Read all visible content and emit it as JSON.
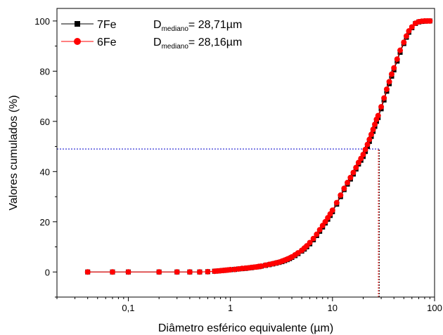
{
  "chart_data": {
    "type": "scatter",
    "xscale": "log",
    "xlim": [
      0.02,
      100
    ],
    "ylim": [
      -10,
      105
    ],
    "xlabel": "Diâmetro esférico equivalente (µm)",
    "ylabel": "Valores cumulados (%)",
    "x_ticks": [
      0.1,
      1,
      10,
      100
    ],
    "x_tick_labels": [
      "0,1",
      "1",
      "10",
      "100"
    ],
    "y_ticks": [
      0,
      20,
      40,
      60,
      80,
      100
    ],
    "y_tick_labels": [
      "0",
      "20",
      "40",
      "60",
      "80",
      "100"
    ],
    "grid": false,
    "legend": {
      "position": "top-left",
      "entries": [
        {
          "name": "7Fe",
          "marker": "square",
          "color": "#000000",
          "annotation_main": "D",
          "annotation_sub": "mediano",
          "annotation_value": "= 28,71µm"
        },
        {
          "name": "6Fe",
          "marker": "circle",
          "color": "#ff0000",
          "annotation_main": "D",
          "annotation_sub": "mediano",
          "annotation_value": "= 28,16µm"
        }
      ]
    },
    "reference_lines": [
      {
        "type": "horizontal",
        "y": 49,
        "x_end": 28.71,
        "color": "#0000cc"
      },
      {
        "type": "vertical",
        "x": 28.71,
        "y_end": 49,
        "color": "#000000"
      },
      {
        "type": "vertical",
        "x": 28.16,
        "y_end": 49,
        "color": "#ff0000"
      }
    ],
    "series": [
      {
        "name": "7Fe",
        "color": "#000000",
        "marker": "square",
        "x": [
          0.04,
          0.07,
          0.1,
          0.2,
          0.3,
          0.4,
          0.5,
          0.6,
          0.7,
          0.75,
          0.8,
          0.85,
          0.9,
          0.95,
          1,
          1.1,
          1.2,
          1.3,
          1.4,
          1.5,
          1.6,
          1.7,
          1.8,
          1.9,
          2,
          2.2,
          2.4,
          2.6,
          2.8,
          3,
          3.2,
          3.4,
          3.6,
          3.8,
          4,
          4.3,
          4.6,
          5,
          5.3,
          5.6,
          6,
          6.5,
          7,
          7.5,
          8,
          8.5,
          9,
          9.5,
          10,
          11,
          12,
          13,
          14,
          15,
          16,
          17,
          18,
          19,
          20,
          21,
          22,
          23,
          24,
          25,
          26,
          27,
          28,
          30,
          32,
          34,
          36,
          38,
          40,
          43,
          46,
          50,
          53,
          56,
          60,
          65,
          70,
          75,
          80,
          85,
          90
        ],
        "y": [
          0,
          0,
          0,
          0,
          0,
          0,
          0,
          0.1,
          0.3,
          0.4,
          0.5,
          0.6,
          0.7,
          0.8,
          0.9,
          1.0,
          1.2,
          1.3,
          1.4,
          1.6,
          1.7,
          1.9,
          2.0,
          2.1,
          2.3,
          2.6,
          2.9,
          3.2,
          3.5,
          3.8,
          4.1,
          4.5,
          4.9,
          5.3,
          5.8,
          6.5,
          7.3,
          8.3,
          9.1,
          10.0,
          11.2,
          12.8,
          14.5,
          16.2,
          17.9,
          19.5,
          21.0,
          22.5,
          24.0,
          27.0,
          30.0,
          32.8,
          35.0,
          37.0,
          39.0,
          41.0,
          43.0,
          44.5,
          46.0,
          48.0,
          50.0,
          52.0,
          54.0,
          56.0,
          58.0,
          60.0,
          61.5,
          65.0,
          68.5,
          72.0,
          75.0,
          78.0,
          80.5,
          84.0,
          87.5,
          91.0,
          93.5,
          95.5,
          97.3,
          99.0,
          99.6,
          99.8,
          99.9,
          100,
          100
        ]
      },
      {
        "name": "6Fe",
        "color": "#ff0000",
        "marker": "circle",
        "x": [
          0.04,
          0.07,
          0.1,
          0.2,
          0.3,
          0.4,
          0.5,
          0.6,
          0.7,
          0.75,
          0.8,
          0.85,
          0.9,
          0.95,
          1,
          1.1,
          1.2,
          1.3,
          1.4,
          1.5,
          1.6,
          1.7,
          1.8,
          1.9,
          2,
          2.2,
          2.4,
          2.6,
          2.8,
          3,
          3.2,
          3.4,
          3.6,
          3.8,
          4,
          4.3,
          4.6,
          5,
          5.3,
          5.6,
          6,
          6.5,
          7,
          7.5,
          8,
          8.5,
          9,
          9.5,
          10,
          11,
          12,
          13,
          14,
          15,
          16,
          17,
          18,
          19,
          20,
          21,
          22,
          23,
          24,
          25,
          26,
          27,
          28,
          30,
          32,
          34,
          36,
          38,
          40,
          43,
          46,
          50,
          53,
          56,
          60,
          65,
          70,
          75,
          80,
          85,
          90
        ],
        "y": [
          0,
          0,
          0,
          0,
          0,
          0,
          0,
          0.1,
          0.3,
          0.4,
          0.5,
          0.6,
          0.7,
          0.8,
          0.9,
          1.0,
          1.2,
          1.4,
          1.5,
          1.6,
          1.8,
          1.9,
          2.0,
          2.2,
          2.3,
          2.7,
          3.0,
          3.3,
          3.6,
          3.9,
          4.3,
          4.7,
          5.1,
          5.5,
          6.0,
          6.8,
          7.6,
          8.6,
          9.5,
          10.4,
          11.7,
          13.3,
          15.0,
          16.8,
          18.5,
          20.0,
          21.6,
          23.1,
          24.6,
          27.6,
          30.6,
          33.3,
          35.6,
          37.6,
          39.6,
          41.6,
          43.6,
          45.2,
          46.8,
          48.8,
          50.8,
          52.8,
          54.8,
          56.8,
          58.8,
          60.8,
          62.3,
          65.8,
          69.3,
          72.8,
          75.8,
          78.8,
          81.3,
          84.8,
          88.3,
          91.5,
          94.0,
          96.0,
          97.6,
          99.1,
          99.7,
          99.9,
          100,
          100,
          100
        ]
      }
    ]
  }
}
